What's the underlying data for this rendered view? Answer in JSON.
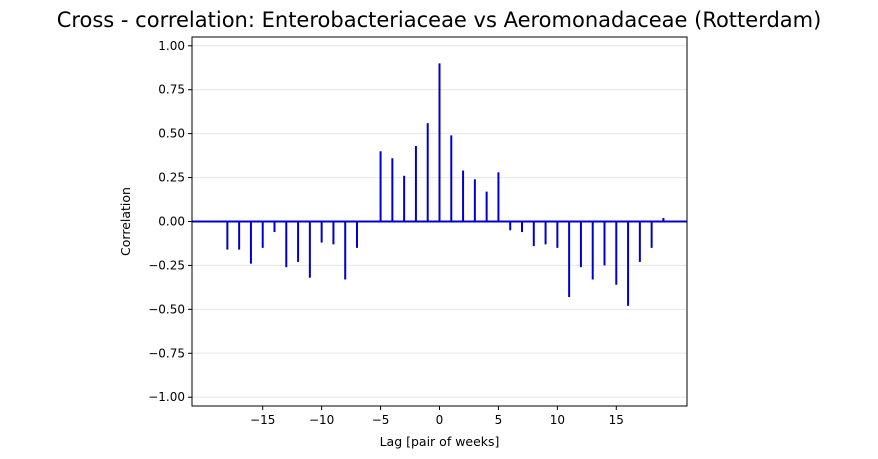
{
  "chart_data": {
    "type": "bar",
    "style": "stem",
    "title": "Cross - correlation: Enterobacteriaceae vs Aeromonadaceae (Rotterdam)",
    "xlabel": "Lag [pair of weeks]",
    "ylabel": "Correlation",
    "xlim": [
      -21,
      21
    ],
    "ylim": [
      -1.05,
      1.05
    ],
    "xticks": [
      -15,
      -10,
      -5,
      0,
      5,
      10,
      15
    ],
    "yticks": [
      -1.0,
      -0.75,
      -0.5,
      -0.25,
      0.0,
      0.25,
      0.5,
      0.75,
      1.0
    ],
    "ytick_labels": [
      "−1.00",
      "−0.75",
      "−0.50",
      "−0.25",
      "0.00",
      "0.25",
      "0.50",
      "0.75",
      "1.00"
    ],
    "xtick_labels": [
      "−15",
      "−10",
      "−5",
      "0",
      "5",
      "10",
      "15"
    ],
    "grid": "horizontal",
    "color": "#0000cc",
    "zero_line_color": "#0000cc",
    "lags": [
      -18,
      -17,
      -16,
      -15,
      -14,
      -13,
      -12,
      -11,
      -10,
      -9,
      -8,
      -7,
      -6,
      -5,
      -4,
      -3,
      -2,
      -1,
      0,
      1,
      2,
      3,
      4,
      5,
      6,
      7,
      8,
      9,
      10,
      11,
      12,
      13,
      14,
      15,
      16,
      17,
      18,
      19
    ],
    "values": [
      -0.16,
      -0.16,
      -0.24,
      -0.15,
      -0.06,
      -0.26,
      -0.23,
      -0.32,
      -0.12,
      -0.13,
      -0.33,
      -0.15,
      0.0,
      0.4,
      0.36,
      0.26,
      0.43,
      0.56,
      0.9,
      0.49,
      0.29,
      0.24,
      0.17,
      0.28,
      -0.05,
      -0.06,
      -0.14,
      -0.13,
      -0.15,
      -0.43,
      -0.26,
      -0.33,
      -0.25,
      -0.36,
      -0.48,
      -0.23,
      -0.15,
      0.02
    ]
  }
}
